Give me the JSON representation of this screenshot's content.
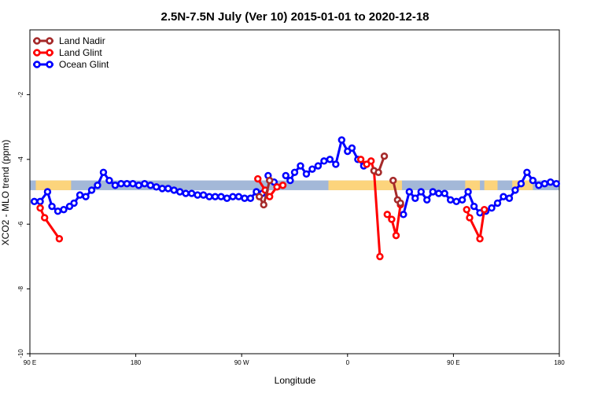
{
  "chart_data": {
    "type": "line",
    "title": "2.5N-7.5N July (Ver 10)   2015-01-01 to 2020-12-18",
    "xlabel": "Longitude",
    "ylabel": "XCO2 - MLO trend (ppm)",
    "xlim": [
      0,
      360
    ],
    "ylim": [
      -10,
      0
    ],
    "x_ticks": [
      {
        "value": 0,
        "label": "90 E"
      },
      {
        "value": 72,
        "label": "180"
      },
      {
        "value": 144,
        "label": "90 W"
      },
      {
        "value": 216,
        "label": "0"
      },
      {
        "value": 288,
        "label": "90 E"
      },
      {
        "value": 360,
        "label": "180"
      }
    ],
    "y_ticks": [
      {
        "value": -2,
        "label": "-2"
      },
      {
        "value": -4,
        "label": "-4"
      },
      {
        "value": -6,
        "label": "-6"
      },
      {
        "value": -8,
        "label": "-8"
      },
      {
        "value": -10,
        "label": "-10"
      }
    ],
    "legend": {
      "position": "top-left",
      "entries": [
        {
          "name": "Land Nadir",
          "color": "#a52a2a"
        },
        {
          "name": "Land Glint",
          "color": "#ff0000"
        },
        {
          "name": "Ocean Glint",
          "color": "#0000ff"
        }
      ]
    },
    "background_band": {
      "y_range": [
        -4.65,
        -4.95
      ],
      "ocean_color": "#a3b8d8",
      "land_color": "#fcd47c"
    },
    "land_segments_x": [
      [
        4,
        28
      ],
      [
        203,
        253
      ],
      [
        296,
        306
      ],
      [
        309,
        318
      ],
      [
        328,
        342
      ]
    ],
    "series": [
      {
        "name": "Ocean Glint",
        "color": "#0000ff",
        "segments": [
          {
            "x": [
              3,
              7,
              12,
              15,
              19,
              23,
              27,
              30,
              34,
              38,
              42,
              46,
              50,
              54,
              58,
              62,
              66,
              70,
              74,
              78,
              82,
              86,
              90,
              94,
              98,
              102,
              106,
              110,
              114,
              118,
              122,
              126,
              130,
              134,
              138,
              142,
              146,
              150,
              154,
              158
            ],
            "y": [
              -5.3,
              -5.3,
              -5.0,
              -5.45,
              -5.6,
              -5.55,
              -5.45,
              -5.35,
              -5.1,
              -5.15,
              -4.95,
              -4.8,
              -4.4,
              -4.65,
              -4.8,
              -4.75,
              -4.75,
              -4.75,
              -4.8,
              -4.75,
              -4.8,
              -4.85,
              -4.9,
              -4.9,
              -4.95,
              -5.0,
              -5.05,
              -5.05,
              -5.1,
              -5.1,
              -5.15,
              -5.15,
              -5.15,
              -5.2,
              -5.15,
              -5.15,
              -5.2,
              -5.2,
              -5.0,
              -5.05
            ]
          },
          {
            "x": [
              162,
              166
            ],
            "y": [
              -4.5,
              -4.7
            ]
          },
          {
            "x": [
              174,
              177,
              180,
              184,
              188,
              192,
              196,
              200,
              204,
              208,
              212,
              216,
              219,
              223,
              227
            ],
            "y": [
              -4.5,
              -4.65,
              -4.4,
              -4.2,
              -4.45,
              -4.3,
              -4.2,
              -4.05,
              -4.0,
              -4.15,
              -3.4,
              -3.75,
              -3.65,
              -4.0,
              -4.2
            ]
          },
          {
            "x": [
              254,
              258,
              262,
              266,
              270,
              274,
              278,
              282,
              286,
              290,
              294,
              298,
              302,
              306,
              310,
              314,
              318,
              322,
              326,
              330,
              334,
              338,
              342,
              346,
              350,
              354,
              358
            ],
            "y": [
              -5.7,
              -5.0,
              -5.2,
              -5.0,
              -5.25,
              -5.0,
              -5.05,
              -5.05,
              -5.25,
              -5.3,
              -5.25,
              -5.0,
              -5.45,
              -5.65,
              -5.6,
              -5.5,
              -5.35,
              -5.15,
              -5.2,
              -4.95,
              -4.75,
              -4.4,
              -4.65,
              -4.8,
              -4.75,
              -4.7,
              -4.75
            ]
          }
        ]
      },
      {
        "name": "Land Glint",
        "color": "#ff0000",
        "segments": [
          {
            "x": [
              7,
              10,
              20
            ],
            "y": [
              -5.5,
              -5.8,
              -6.45
            ]
          },
          {
            "x": [
              155,
              160,
              163,
              168,
              172
            ],
            "y": [
              -4.6,
              -4.95,
              -5.15,
              -4.85,
              -4.8
            ]
          },
          {
            "x": [
              225,
              229,
              232,
              234,
              238
            ],
            "y": [
              -4.0,
              -4.15,
              -4.05,
              -4.35,
              -7.0
            ]
          },
          {
            "x": [
              243,
              246,
              249,
              252
            ],
            "y": [
              -5.7,
              -5.85,
              -6.35,
              -5.4
            ]
          },
          {
            "x": [
              297,
              299,
              306,
              309
            ],
            "y": [
              -5.55,
              -5.8,
              -6.45,
              -5.55
            ]
          }
        ]
      },
      {
        "name": "Land Nadir",
        "color": "#a52a2a",
        "segments": [
          {
            "x": [
              156,
              159,
              163
            ],
            "y": [
              -5.15,
              -5.4,
              -4.65
            ]
          },
          {
            "x": [
              234,
              237,
              241
            ],
            "y": [
              -4.35,
              -4.4,
              -3.9
            ]
          },
          {
            "x": [
              247,
              250,
              252
            ],
            "y": [
              -4.65,
              -5.25,
              -5.35
            ]
          }
        ]
      }
    ]
  }
}
